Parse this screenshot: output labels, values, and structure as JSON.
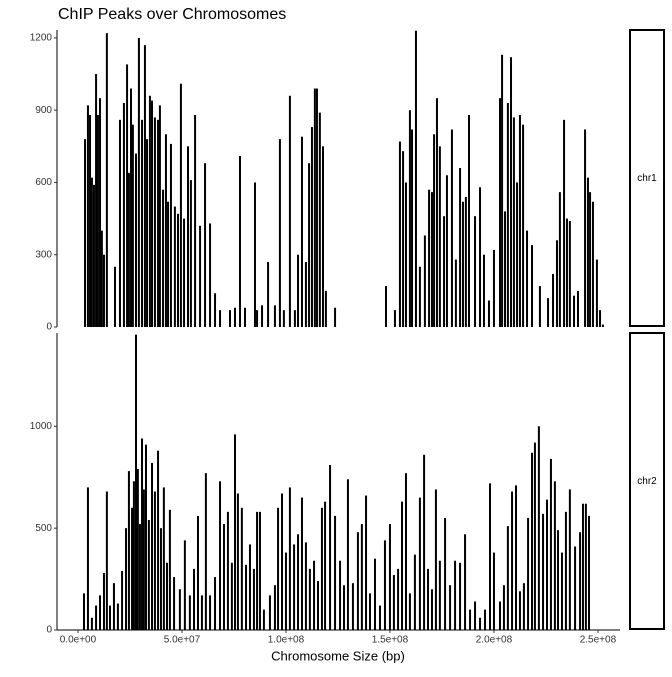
{
  "chart_data": [
    {
      "type": "bar",
      "title": "ChIP Peaks over Chromosomes",
      "facet": "chr1",
      "color": "#000000",
      "x": [
        3400000,
        4800000,
        5800000,
        6700000,
        7700000,
        8700000,
        9600000,
        10600000,
        11500000,
        12500000,
        13900000,
        17800000,
        20200000,
        22100000,
        23600000,
        24500000,
        25500000,
        26400000,
        27900000,
        29300000,
        30800000,
        32200000,
        33200000,
        34600000,
        35600000,
        37000000,
        38500000,
        39400000,
        40900000,
        42300000,
        43300000,
        44700000,
        46600000,
        48100000,
        49500000,
        51000000,
        52900000,
        54300000,
        56300000,
        58700000,
        61100000,
        63500000,
        65900000,
        68300000,
        73100000,
        75500000,
        77900000,
        80300000,
        85100000,
        86100000,
        88500000,
        91400000,
        94700000,
        97100000,
        99000000,
        101900000,
        104300000,
        105800000,
        107700000,
        109600000,
        111100000,
        112500000,
        113900000,
        114900000,
        116300000,
        117800000,
        119200000,
        123600000,
        148100000,
        152400000,
        154800000,
        156300000,
        157700000,
        159600000,
        160600000,
        162500000,
        164400000,
        166800000,
        168800000,
        170200000,
        171200000,
        172600000,
        174000000,
        176000000,
        177400000,
        179800000,
        181700000,
        183700000,
        185100000,
        186500000,
        188000000,
        190900000,
        193300000,
        195200000,
        197600000,
        200000000,
        202900000,
        203900000,
        205300000,
        206700000,
        208200000,
        209600000,
        211100000,
        212500000,
        214000000,
        215900000,
        218300000,
        222100000,
        226000000,
        228400000,
        230300000,
        231700000,
        233700000,
        235100000,
        236500000,
        238500000,
        240400000,
        243800000,
        245200000,
        246200000,
        247600000,
        249500000,
        251000000,
        252400000
      ],
      "values": [
        780,
        920,
        880,
        620,
        590,
        1050,
        880,
        950,
        400,
        300,
        1220,
        250,
        860,
        930,
        1090,
        640,
        990,
        840,
        720,
        1200,
        860,
        1170,
        780,
        960,
        940,
        870,
        860,
        920,
        570,
        800,
        520,
        760,
        500,
        470,
        1010,
        450,
        750,
        610,
        880,
        420,
        680,
        430,
        140,
        70,
        70,
        80,
        710,
        80,
        600,
        70,
        90,
        270,
        90,
        780,
        70,
        960,
        70,
        300,
        790,
        270,
        680,
        830,
        990,
        990,
        890,
        750,
        150,
        80,
        170,
        70,
        770,
        730,
        600,
        900,
        820,
        1230,
        250,
        380,
        570,
        560,
        800,
        950,
        750,
        460,
        630,
        820,
        280,
        660,
        520,
        540,
        880,
        460,
        580,
        300,
        110,
        320,
        950,
        1130,
        480,
        930,
        1120,
        870,
        600,
        880,
        840,
        400,
        340,
        170,
        120,
        220,
        360,
        560,
        860,
        450,
        440,
        130,
        150,
        820,
        620,
        560,
        520,
        280,
        70,
        10
      ],
      "xlim": [
        -9600000,
        260600000
      ],
      "ylim": [
        0,
        1233
      ],
      "yticks": [
        0,
        300,
        600,
        900,
        1200
      ]
    },
    {
      "type": "bar",
      "facet": "chr2",
      "x_label": "Chromosome Size (bp)",
      "color": "#000000",
      "x": [
        2900000,
        4800000,
        6700000,
        8700000,
        10600000,
        12500000,
        13900000,
        15400000,
        17300000,
        19200000,
        21200000,
        23100000,
        24500000,
        26000000,
        26900000,
        27900000,
        28800000,
        29800000,
        30800000,
        31700000,
        32700000,
        34100000,
        35600000,
        37000000,
        38500000,
        39900000,
        41300000,
        42800000,
        44200000,
        46200000,
        49000000,
        51400000,
        53800000,
        55800000,
        57700000,
        59600000,
        61500000,
        63500000,
        65900000,
        68300000,
        70200000,
        72100000,
        74000000,
        75500000,
        76900000,
        78800000,
        80800000,
        82700000,
        84600000,
        86100000,
        87500000,
        89400000,
        92300000,
        94700000,
        96200000,
        98100000,
        100000000,
        101900000,
        103900000,
        105800000,
        107700000,
        109600000,
        111500000,
        113500000,
        115400000,
        117300000,
        118800000,
        121200000,
        123600000,
        126000000,
        127900000,
        129800000,
        132200000,
        134600000,
        136500000,
        138500000,
        140400000,
        142800000,
        145200000,
        147600000,
        150000000,
        151900000,
        153900000,
        155800000,
        157700000,
        159600000,
        162000000,
        164400000,
        166400000,
        168300000,
        170200000,
        172100000,
        174000000,
        176500000,
        178900000,
        181300000,
        183700000,
        186100000,
        188500000,
        190900000,
        193300000,
        195700000,
        198100000,
        200000000,
        202900000,
        204800000,
        206700000,
        208700000,
        210600000,
        212500000,
        214400000,
        216400000,
        218300000,
        219700000,
        221600000,
        223600000,
        225500000,
        227400000,
        229300000,
        230800000,
        232700000,
        234600000,
        236500000,
        239000000,
        241400000,
        242800000,
        244200000,
        245700000
      ],
      "values": [
        180,
        700,
        60,
        120,
        170,
        280,
        680,
        120,
        230,
        130,
        290,
        500,
        780,
        600,
        730,
        1450,
        790,
        520,
        940,
        690,
        910,
        540,
        820,
        680,
        880,
        500,
        700,
        330,
        590,
        260,
        200,
        440,
        170,
        300,
        560,
        170,
        770,
        170,
        260,
        730,
        520,
        580,
        330,
        960,
        670,
        600,
        320,
        420,
        300,
        580,
        580,
        100,
        170,
        220,
        600,
        670,
        380,
        700,
        420,
        470,
        650,
        430,
        300,
        340,
        240,
        600,
        630,
        810,
        560,
        340,
        220,
        740,
        230,
        480,
        520,
        660,
        180,
        350,
        120,
        440,
        520,
        270,
        300,
        630,
        770,
        180,
        370,
        650,
        860,
        300,
        200,
        690,
        340,
        550,
        220,
        340,
        330,
        470,
        100,
        140,
        60,
        100,
        720,
        380,
        140,
        220,
        510,
        680,
        710,
        190,
        230,
        550,
        870,
        920,
        1000,
        570,
        640,
        840,
        730,
        490,
        380,
        580,
        690,
        410,
        480,
        620,
        620,
        560
      ],
      "xlim": [
        -9600000,
        260600000
      ],
      "ylim": [
        0,
        1458
      ],
      "yticks": [
        0,
        500,
        1000
      ],
      "xticks": [
        {
          "value": 0,
          "label": "0.0e+00"
        },
        {
          "value": 50000000,
          "label": "5.0e+07"
        },
        {
          "value": 100000000,
          "label": "1.0e+08"
        },
        {
          "value": 150000000,
          "label": "1.5e+08"
        },
        {
          "value": 200000000,
          "label": "2.0e+08"
        },
        {
          "value": 250000000,
          "label": "2.5e+08"
        }
      ]
    }
  ]
}
